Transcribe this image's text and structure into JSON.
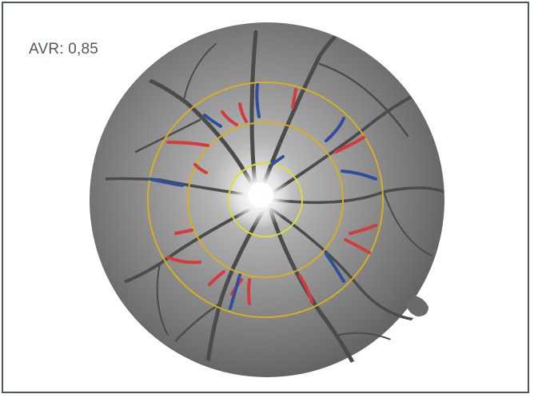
{
  "measurement": {
    "avr_text": "AVR: 0,85"
  },
  "colors": {
    "frame_border": "#4a5a5c",
    "measurement_ring": "#d6b020",
    "inner_ring": "#dede3a",
    "artery_marking": "#d63a3a",
    "vein_marking": "#2e4f9c",
    "label_text": "#4f5a5a"
  },
  "markings": {
    "artery_count": 14,
    "vein_count": 8
  }
}
